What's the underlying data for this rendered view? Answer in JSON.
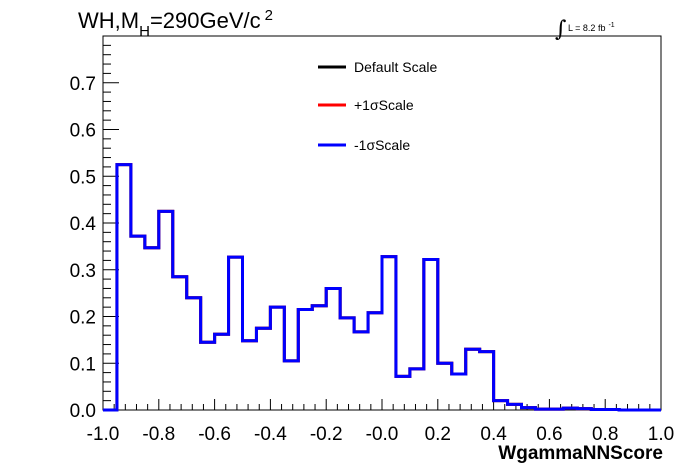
{
  "chart_data": {
    "type": "line",
    "title": {
      "main": "WH,M",
      "sub": "H",
      "rest": "=290GeV/c",
      "sup": "2"
    },
    "lumi": {
      "symbol": "∫",
      "text": "L = 8.2 fb",
      "sup": "-1"
    },
    "xlabel": "WgammaNNScore",
    "ylabel": "",
    "xlim": [
      -1.0,
      1.0
    ],
    "ylim": [
      0.0,
      0.8
    ],
    "x_ticks": [
      "-1.0",
      "-0.8",
      "-0.6",
      "-0.4",
      "-0.2",
      "-0.0",
      "0.2",
      "0.4",
      "0.6",
      "0.8",
      "1.0"
    ],
    "y_ticks": [
      "0.0",
      "0.1",
      "0.2",
      "0.3",
      "0.4",
      "0.5",
      "0.6",
      "0.7"
    ],
    "grid": false,
    "legend_position": "top-center",
    "bin_edges": [
      -1.0,
      -0.95,
      -0.9,
      -0.85,
      -0.8,
      -0.75,
      -0.7,
      -0.65,
      -0.6,
      -0.55,
      -0.5,
      -0.45,
      -0.4,
      -0.35,
      -0.3,
      -0.25,
      -0.2,
      -0.15,
      -0.1,
      -0.05,
      0.0,
      0.05,
      0.1,
      0.15,
      0.2,
      0.25,
      0.3,
      0.35,
      0.4,
      0.45,
      0.5,
      0.55,
      0.6,
      0.65,
      0.7,
      0.75,
      0.8,
      0.85,
      0.9,
      0.95,
      1.0
    ],
    "series": [
      {
        "name": "Default Scale",
        "color": "#000000",
        "values": [
          0.0,
          0.525,
          0.372,
          0.347,
          0.425,
          0.285,
          0.24,
          0.145,
          0.162,
          0.327,
          0.148,
          0.175,
          0.22,
          0.105,
          0.215,
          0.223,
          0.26,
          0.197,
          0.167,
          0.208,
          0.328,
          0.072,
          0.088,
          0.322,
          0.1,
          0.077,
          0.13,
          0.125,
          0.02,
          0.012,
          0.005,
          0.002,
          0.002,
          0.004,
          0.003,
          0.001,
          0.001,
          0.0,
          0.0,
          0.0
        ]
      },
      {
        "name": "+1σScale",
        "color": "#ff0000",
        "values": [
          0.0,
          0.525,
          0.372,
          0.347,
          0.425,
          0.285,
          0.24,
          0.145,
          0.162,
          0.327,
          0.148,
          0.175,
          0.22,
          0.105,
          0.215,
          0.223,
          0.26,
          0.197,
          0.167,
          0.208,
          0.328,
          0.072,
          0.088,
          0.322,
          0.1,
          0.077,
          0.13,
          0.125,
          0.02,
          0.012,
          0.005,
          0.002,
          0.002,
          0.004,
          0.003,
          0.001,
          0.001,
          0.0,
          0.0,
          0.0
        ]
      },
      {
        "name": "-1σScale",
        "color": "#0000ff",
        "values": [
          0.0,
          0.525,
          0.372,
          0.347,
          0.425,
          0.285,
          0.24,
          0.145,
          0.162,
          0.327,
          0.148,
          0.175,
          0.22,
          0.105,
          0.215,
          0.223,
          0.26,
          0.197,
          0.167,
          0.208,
          0.328,
          0.072,
          0.088,
          0.322,
          0.1,
          0.077,
          0.13,
          0.125,
          0.02,
          0.012,
          0.005,
          0.002,
          0.002,
          0.004,
          0.003,
          0.001,
          0.001,
          0.0,
          0.0,
          0.0
        ]
      }
    ]
  }
}
